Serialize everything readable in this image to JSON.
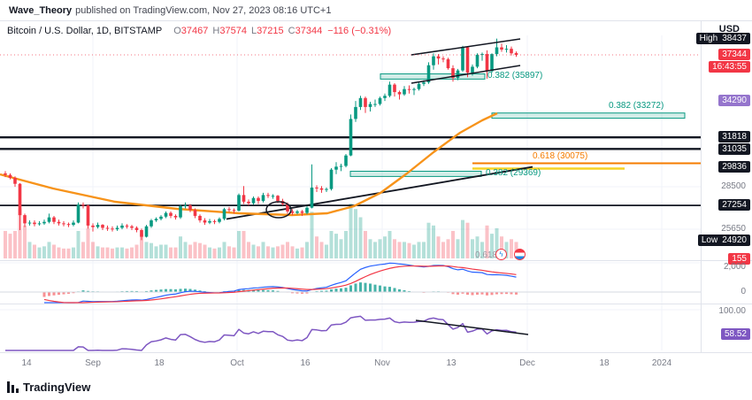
{
  "header": {
    "author": "Wave_Theory",
    "publication": "published on TradingView.com, Nov 27, 2023 08:16 UTC+1"
  },
  "legend": {
    "symbol": "Bitcoin / U.S. Dollar, 1D, BITSTAMP",
    "o_label": "O",
    "o": "37467",
    "h_label": "H",
    "h": "37574",
    "l_label": "L",
    "l": "37215",
    "c_label": "C",
    "c": "37344",
    "change": "−116 (−0.31%)"
  },
  "price_scale": {
    "currency": "USD",
    "high_label": "High",
    "high": "38437",
    "last": "37344",
    "countdown": "16:43:55",
    "ma_value": "34290",
    "level_a": "31818",
    "level_b": "31035",
    "trend_value": "29836",
    "tick_a": "28500",
    "level_c": "27254",
    "tick_b": "25650",
    "low_label": "Low",
    "low": "24920",
    "macd_value": "155",
    "macd_tick_a": "2,000",
    "macd_tick_b": "0",
    "rsi_tick": "100.00",
    "rsi_value": "58.52"
  },
  "annotations": {
    "fib_small": "0.618"
  },
  "time_axis": {
    "labels": [
      "14",
      "Sep",
      "18",
      "Oct",
      "16",
      "Nov",
      "13",
      "Dec",
      "18",
      "2024"
    ]
  },
  "footer": {
    "brand": "TradingView"
  },
  "chart_data": {
    "type": "candlestick",
    "title": "Bitcoin / U.S. Dollar",
    "interval": "1D",
    "exchange": "BITSTAMP",
    "last_ohlc": {
      "open": 37467,
      "high": 37574,
      "low": 37215,
      "close": 37344,
      "change": -116,
      "change_pct": -0.31
    },
    "session_high": 38437,
    "session_low": 24920,
    "price_axis_ticks": [
      38437,
      37344,
      34290,
      31818,
      31035,
      29836,
      28500,
      27254,
      25650,
      24920
    ],
    "colors": {
      "up": "#089981",
      "down": "#f23645",
      "ma": "#f7931a",
      "rsi": "#7e57c2",
      "macd_line": "#2962ff",
      "signal_line": "#f23645",
      "hist_pos": "#26a69a",
      "hist_neg": "#f77c80",
      "level": "#131722",
      "fib_green": "#089981",
      "fib_orange": "#f57c00",
      "fib_yellow": "#f5d327"
    },
    "levels": [
      {
        "price": 31818
      },
      {
        "price": 31035
      },
      {
        "price": 27254
      }
    ],
    "trendline": {
      "end_price": 29836
    },
    "fib_zones": [
      {
        "label": "0.382 (35897)",
        "price": 35897
      },
      {
        "label": "0.382 (33272)",
        "price": 33272
      },
      {
        "label": "0.382 (29369)",
        "price": 29369
      }
    ],
    "fib_lines": [
      {
        "label": "0.618 (30075)",
        "price": 30075,
        "color": "#f57c00"
      },
      {
        "label": "",
        "price": 29720,
        "color": "#f5d327"
      }
    ],
    "indicators": {
      "macd": {
        "latest": 155
      },
      "rsi": {
        "latest": 58.52
      }
    },
    "candles": [
      [
        29400,
        29550,
        29150,
        29300,
        0.5
      ],
      [
        29300,
        29400,
        29000,
        29100,
        0.45
      ],
      [
        29100,
        29200,
        28500,
        28700,
        0.5
      ],
      [
        28700,
        28750,
        25600,
        26600,
        0.9
      ],
      [
        26600,
        26700,
        25800,
        26050,
        0.6
      ],
      [
        26050,
        26250,
        25900,
        26100,
        0.3
      ],
      [
        26100,
        26250,
        25850,
        26000,
        0.25
      ],
      [
        26000,
        26200,
        25900,
        26050,
        0.2
      ],
      [
        26050,
        26300,
        25950,
        26150,
        0.22
      ],
      [
        26150,
        26700,
        26050,
        26450,
        0.3
      ],
      [
        26450,
        26550,
        26000,
        26150,
        0.25
      ],
      [
        26150,
        26300,
        25900,
        26050,
        0.2
      ],
      [
        26050,
        26200,
        25850,
        26000,
        0.18
      ],
      [
        26000,
        26100,
        25800,
        25950,
        0.18
      ],
      [
        25950,
        26250,
        25850,
        26100,
        0.2
      ],
      [
        26100,
        27450,
        26050,
        27300,
        0.5
      ],
      [
        27300,
        27450,
        27050,
        27250,
        0.3
      ],
      [
        27250,
        27300,
        25700,
        25900,
        0.55
      ],
      [
        25900,
        26050,
        25500,
        25800,
        0.3
      ],
      [
        25800,
        26100,
        25700,
        25950,
        0.22
      ],
      [
        25950,
        26000,
        25600,
        25750,
        0.2
      ],
      [
        25750,
        25900,
        25550,
        25700,
        0.2
      ],
      [
        25700,
        25850,
        25500,
        25650,
        0.18
      ],
      [
        25650,
        25900,
        25550,
        25750,
        0.2
      ],
      [
        25750,
        26050,
        25650,
        25900,
        0.2
      ],
      [
        25900,
        26000,
        25700,
        25850,
        0.18
      ],
      [
        25850,
        25950,
        25600,
        25750,
        0.2
      ],
      [
        25750,
        25850,
        25450,
        25600,
        0.25
      ],
      [
        25600,
        25700,
        24920,
        25150,
        0.45
      ],
      [
        25150,
        25950,
        25100,
        25850,
        0.3
      ],
      [
        25850,
        26350,
        25750,
        26250,
        0.28
      ],
      [
        26250,
        26450,
        26150,
        26350,
        0.22
      ],
      [
        26350,
        26600,
        26250,
        26500,
        0.25
      ],
      [
        26500,
        26850,
        26400,
        26750,
        0.25
      ],
      [
        26750,
        26850,
        26400,
        26550,
        0.2
      ],
      [
        26550,
        26650,
        26300,
        26450,
        0.2
      ],
      [
        26450,
        27300,
        26350,
        27200,
        0.4
      ],
      [
        27200,
        27450,
        27050,
        27250,
        0.3
      ],
      [
        27250,
        27350,
        26800,
        26950,
        0.25
      ],
      [
        26950,
        27050,
        26400,
        26550,
        0.3
      ],
      [
        26550,
        26650,
        26100,
        26250,
        0.28
      ],
      [
        26250,
        26400,
        25950,
        26100,
        0.25
      ],
      [
        26100,
        26350,
        26000,
        26200,
        0.2
      ],
      [
        26200,
        26300,
        26000,
        26150,
        0.18
      ],
      [
        26150,
        26450,
        26050,
        26350,
        0.2
      ],
      [
        26350,
        27100,
        26250,
        27000,
        0.3
      ],
      [
        27000,
        27150,
        26800,
        26950,
        0.22
      ],
      [
        26950,
        27050,
        26700,
        26900,
        0.2
      ],
      [
        26900,
        28050,
        26850,
        27950,
        0.5
      ],
      [
        27950,
        28550,
        27350,
        27500,
        0.5
      ],
      [
        27500,
        27650,
        27250,
        27400,
        0.3
      ],
      [
        27400,
        27850,
        27300,
        27750,
        0.25
      ],
      [
        27750,
        27850,
        27350,
        27550,
        0.22
      ],
      [
        27550,
        28100,
        27450,
        27950,
        0.3
      ],
      [
        27950,
        28100,
        27750,
        27900,
        0.22
      ],
      [
        27900,
        28000,
        27700,
        27900,
        0.2
      ],
      [
        27900,
        27950,
        27400,
        27550,
        0.22
      ],
      [
        27550,
        27700,
        27250,
        27350,
        0.25
      ],
      [
        27350,
        27450,
        26700,
        26850,
        0.3
      ],
      [
        26850,
        27000,
        26600,
        26750,
        0.22
      ],
      [
        26750,
        26950,
        26650,
        26850,
        0.18
      ],
      [
        26850,
        26950,
        26550,
        26750,
        0.2
      ],
      [
        26750,
        27200,
        26650,
        27100,
        0.3
      ],
      [
        27100,
        30000,
        27050,
        28450,
        0.85
      ],
      [
        28450,
        28600,
        28150,
        28400,
        0.4
      ],
      [
        28400,
        28550,
        28100,
        28300,
        0.3
      ],
      [
        28300,
        28450,
        28150,
        28350,
        0.25
      ],
      [
        28350,
        29750,
        28250,
        29650,
        0.5
      ],
      [
        29650,
        30150,
        29350,
        29850,
        0.45
      ],
      [
        29850,
        30050,
        29550,
        29900,
        0.35
      ],
      [
        29900,
        30700,
        29800,
        30600,
        0.5
      ],
      [
        30600,
        33350,
        30550,
        33050,
        1.0
      ],
      [
        33050,
        34250,
        32850,
        33850,
        0.9
      ],
      [
        33850,
        34600,
        33650,
        34450,
        0.75
      ],
      [
        34450,
        34550,
        33450,
        33850,
        0.5
      ],
      [
        33850,
        34200,
        33550,
        34050,
        0.35
      ],
      [
        34050,
        34350,
        33850,
        34050,
        0.3
      ],
      [
        34050,
        34550,
        33950,
        34450,
        0.35
      ],
      [
        34450,
        34750,
        34250,
        34600,
        0.4
      ],
      [
        34600,
        35550,
        34500,
        35350,
        0.5
      ],
      [
        35350,
        35450,
        34550,
        34850,
        0.35
      ],
      [
        34850,
        34950,
        34350,
        34700,
        0.3
      ],
      [
        34700,
        35250,
        34600,
        35050,
        0.3
      ],
      [
        35050,
        35300,
        34750,
        35000,
        0.28
      ],
      [
        35000,
        35150,
        34650,
        35050,
        0.25
      ],
      [
        35050,
        35550,
        34950,
        35400,
        0.3
      ],
      [
        35400,
        35650,
        35250,
        35500,
        0.3
      ],
      [
        35500,
        36850,
        35400,
        36650,
        0.65
      ],
      [
        36650,
        37450,
        36350,
        37250,
        0.6
      ],
      [
        37250,
        37400,
        36700,
        37100,
        0.4
      ],
      [
        37100,
        37250,
        36850,
        37050,
        0.3
      ],
      [
        37050,
        37150,
        36350,
        36450,
        0.35
      ],
      [
        36450,
        36650,
        35550,
        35800,
        0.5
      ],
      [
        35800,
        36400,
        35650,
        36300,
        0.35
      ],
      [
        36300,
        37950,
        36200,
        37850,
        0.7
      ],
      [
        37850,
        37900,
        35850,
        36150,
        0.65
      ],
      [
        36150,
        36700,
        35950,
        36550,
        0.35
      ],
      [
        36550,
        37450,
        36450,
        37350,
        0.4
      ],
      [
        37350,
        37500,
        36950,
        37400,
        0.3
      ],
      [
        37400,
        37650,
        35750,
        36250,
        0.6
      ],
      [
        36250,
        37450,
        36150,
        37400,
        0.45
      ],
      [
        37400,
        38437,
        37250,
        37850,
        0.55
      ],
      [
        37850,
        38100,
        37550,
        37700,
        0.4
      ],
      [
        37700,
        38000,
        37500,
        37750,
        0.3
      ],
      [
        37750,
        37900,
        37300,
        37450,
        0.35
      ],
      [
        37467,
        37574,
        37215,
        37344,
        0.3
      ]
    ]
  }
}
